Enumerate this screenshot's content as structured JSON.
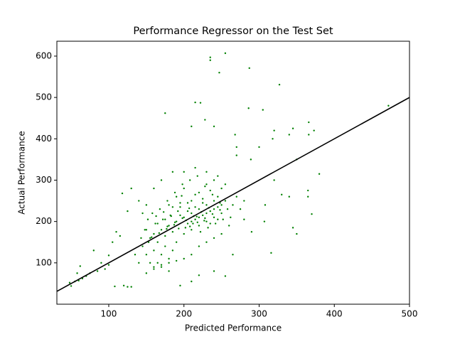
{
  "chart_data": {
    "type": "scatter",
    "title": "Performance Regressor on the Test Set",
    "x_label": "Predicted Performance",
    "y_label": "Actual Performance",
    "xlim": [
      31,
      500
    ],
    "ylim": [
      0,
      636
    ],
    "xticks": [
      100,
      200,
      300,
      400,
      500
    ],
    "yticks": [
      100,
      200,
      300,
      400,
      500,
      600
    ],
    "series": [
      {
        "color": "#008000",
        "x": [
          235,
          235,
          255,
          247,
          287,
          327,
          472,
          215,
          222,
          305,
          286,
          175,
          228,
          240,
          210,
          320,
          340,
          345,
          268,
          318,
          373,
          350,
          366,
          366,
          380,
          370,
          365,
          365,
          316,
          255,
          210,
          195,
          125,
          130,
          120,
          108,
          50,
          48,
          55,
          60,
          65,
          70,
          58,
          62,
          75,
          80,
          100,
          105,
          110,
          115,
          118,
          125,
          130,
          270,
          300,
          308,
          307,
          320,
          330,
          340,
          345,
          350,
          289,
          270,
          280,
          290,
          265,
          240,
          220,
          180,
          170,
          160,
          150,
          140,
          135,
          145,
          100,
          90,
          85,
          95,
          200,
          190,
          210,
          220,
          180,
          170,
          230,
          205,
          195,
          215,
          185,
          175,
          225,
          235,
          240,
          245,
          160,
          165,
          155,
          150,
          210,
          220,
          200,
          190,
          180,
          230,
          240,
          250,
          255,
          160,
          170,
          180,
          175,
          165,
          185,
          190,
          200,
          210,
          220,
          230,
          240,
          250,
          195,
          205,
          215,
          225,
          235,
          245,
          172,
          182,
          192,
          202,
          212,
          222,
          232,
          242,
          252,
          162,
          152,
          158,
          168,
          178,
          188,
          198,
          208,
          218,
          228,
          238,
          248,
          258,
          262,
          150,
          155,
          160,
          170,
          180,
          190,
          200,
          210,
          220,
          230,
          240,
          250,
          260,
          265,
          270,
          275,
          280,
          150,
          145,
          148,
          153,
          143,
          140,
          160,
          170,
          185,
          200,
          215,
          230,
          245,
          255,
          197,
          207,
          217,
          227,
          187,
          177,
          167,
          157,
          203,
          213,
          223,
          233,
          193,
          183,
          173,
          163,
          208,
          218,
          228,
          238,
          248,
          198,
          188,
          178,
          235,
          245,
          225,
          215,
          205,
          195,
          185,
          175,
          165,
          250,
          240,
          230,
          220,
          210
        ],
        "values": [
          597,
          590,
          607,
          560,
          571,
          531,
          480,
          488,
          487,
          470,
          474,
          462,
          446,
          430,
          430,
          420,
          410,
          425,
          410,
          400,
          420,
          350,
          440,
          410,
          315,
          218,
          275,
          260,
          124,
          68,
          55,
          45,
          42,
          42,
          45,
          43,
          44,
          52,
          55,
          57,
          62,
          68,
          75,
          92,
          75,
          130,
          118,
          150,
          175,
          165,
          268,
          225,
          280,
          380,
          380,
          240,
          200,
          300,
          265,
          260,
          185,
          170,
          350,
          360,
          205,
          175,
          120,
          80,
          70,
          80,
          90,
          85,
          75,
          100,
          120,
          140,
          95,
          100,
          80,
          85,
          210,
          200,
          220,
          230,
          190,
          180,
          240,
          195,
          215,
          205,
          175,
          165,
          215,
          225,
          250,
          260,
          170,
          150,
          160,
          180,
          250,
          270,
          280,
          260,
          240,
          290,
          300,
          280,
          250,
          130,
          120,
          110,
          140,
          100,
          130,
          150,
          170,
          180,
          190,
          200,
          210,
          220,
          235,
          245,
          265,
          255,
          275,
          235,
          205,
          215,
          225,
          185,
          195,
          175,
          185,
          195,
          205,
          195,
          205,
          220,
          230,
          250,
          270,
          290,
          300,
          310,
          285,
          265,
          245,
          230,
          210,
          120,
          100,
          90,
          95,
          100,
          105,
          110,
          120,
          140,
          150,
          160,
          170,
          190,
          240,
          260,
          230,
          250,
          240,
          220,
          180,
          150,
          160,
          250,
          280,
          300,
          320,
          320,
          330,
          320,
          310,
          290,
          262,
          232,
          212,
          202,
          192,
          182,
          172,
          162,
          203,
          213,
          223,
          233,
          183,
          213,
          223,
          213,
          188,
          198,
          208,
          218,
          228,
          208,
          198,
          188,
          195,
          205,
          245,
          235,
          225,
          245,
          235,
          205,
          195,
          240,
          230,
          220,
          210,
          200
        ]
      }
    ],
    "fit_line": {
      "color": "#000000",
      "x": [
        31,
        500
      ],
      "values": [
        31,
        500
      ]
    }
  }
}
